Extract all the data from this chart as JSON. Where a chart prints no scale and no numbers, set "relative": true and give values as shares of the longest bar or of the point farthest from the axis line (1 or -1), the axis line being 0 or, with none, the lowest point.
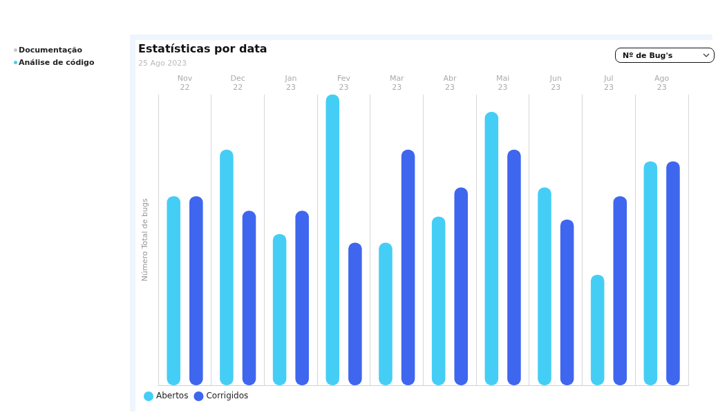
{
  "chart_data": {
    "type": "bar",
    "title": "Estatísticas por data",
    "subtitle": "25 Ago 2023",
    "ylabel": "Número Total de bugs",
    "annotations": [
      "Documentação",
      "Análise de código",
      "Nº de Bug's"
    ],
    "categories": [
      "Nov 22",
      "Dec 22",
      "Jan 23",
      "Fev 23",
      "Mar 23",
      "Abr 23",
      "Mai 23",
      "Jun 23",
      "Jul 23",
      "Ago 23"
    ],
    "relative": true,
    "grid": "x",
    "legend": "bottom left",
    "series": [
      {
        "name": "Abertos",
        "color": "#45cef5",
        "values": [
          0.65,
          0.81,
          0.52,
          1,
          0.49,
          0.58,
          0.94,
          0.68,
          0.38,
          0.77
        ]
      },
      {
        "name": "Corrigidos",
        "color": "#3f66ee",
        "values": [
          0.65,
          0.6,
          0.6,
          0.49,
          0.81,
          0.68,
          0.81,
          0.57,
          0.65,
          0.77
        ]
      }
    ]
  }
}
